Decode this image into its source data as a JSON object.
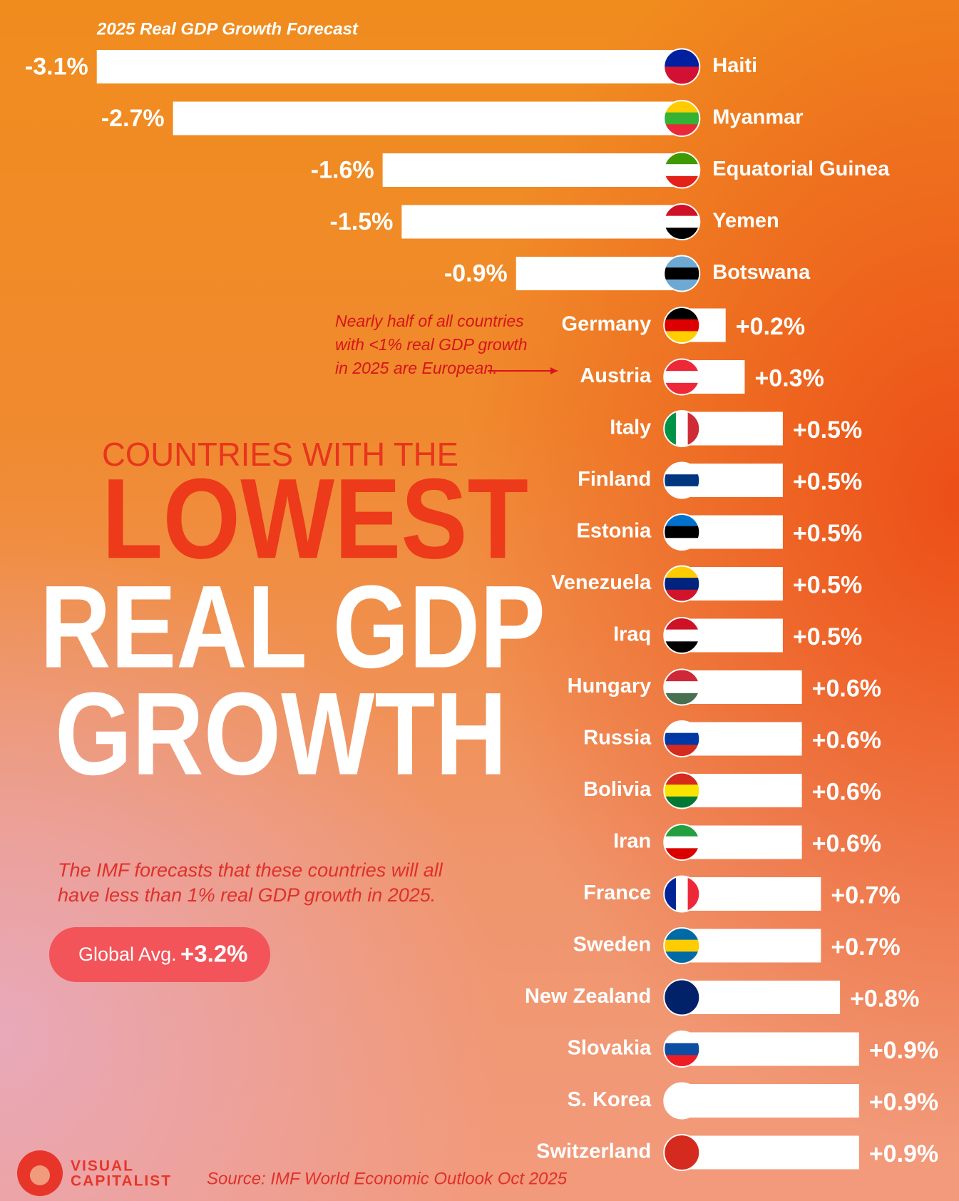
{
  "chart_data": {
    "type": "bar",
    "orientation": "horizontal",
    "subtitle": "2025 Real GDP Growth Forecast",
    "title": [
      "COUNTRIES WITH THE",
      "LOWEST",
      "REAL GDP",
      "GROWTH"
    ],
    "categories": [
      "Haiti",
      "Myanmar",
      "Equatorial Guinea",
      "Yemen",
      "Botswana",
      "Germany",
      "Austria",
      "Italy",
      "Finland",
      "Estonia",
      "Venezuela",
      "Iraq",
      "Hungary",
      "Russia",
      "Bolivia",
      "Iran",
      "France",
      "Sweden",
      "New Zealand",
      "Slovakia",
      "S. Korea",
      "Switzerland"
    ],
    "values": [
      -3.1,
      -2.7,
      -1.6,
      -1.5,
      -0.9,
      0.2,
      0.3,
      0.5,
      0.5,
      0.5,
      0.5,
      0.5,
      0.6,
      0.6,
      0.6,
      0.6,
      0.7,
      0.7,
      0.8,
      0.9,
      0.9,
      0.9
    ],
    "value_labels": [
      "-3.1%",
      "-2.7%",
      "-1.6%",
      "-1.5%",
      "-0.9%",
      "+0.2%",
      "+0.3%",
      "+0.5%",
      "+0.5%",
      "+0.5%",
      "+0.5%",
      "+0.5%",
      "+0.6%",
      "+0.6%",
      "+0.6%",
      "+0.6%",
      "+0.7%",
      "+0.7%",
      "+0.8%",
      "+0.9%",
      "+0.9%",
      "+0.9%"
    ],
    "color": "#ffffff",
    "xlim": [
      -3.2,
      1.2
    ],
    "annotation": [
      "Nearly half of all countries",
      "with <1% real GDP growth",
      "in 2025 are European."
    ],
    "description": [
      "The IMF forecasts that these countries will all",
      "have less than 1% real GDP growth in 2025."
    ],
    "global_avg": {
      "label": "Global Avg.",
      "value_label": "+3.2%"
    },
    "source": "Source: IMF World Economic Outlook Oct 2025",
    "logo": [
      "VISUAL",
      "CAPITALIST"
    ]
  }
}
